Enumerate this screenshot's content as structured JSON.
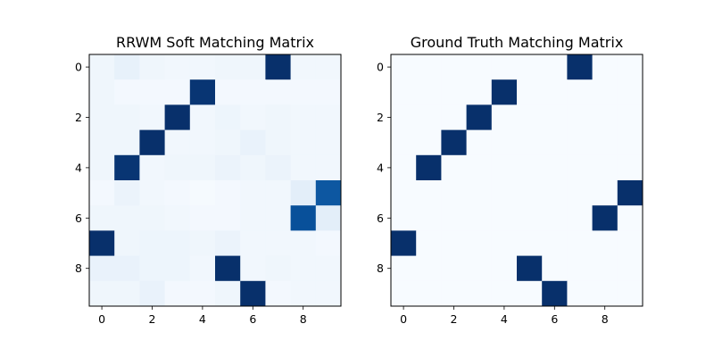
{
  "chart_data": [
    {
      "type": "heatmap",
      "title": "RRWM Soft Matching Matrix",
      "colormap": "Blues",
      "vmin": 0,
      "vmax": 1,
      "xticks": [
        0,
        2,
        4,
        6,
        8
      ],
      "yticks": [
        0,
        2,
        4,
        6,
        8
      ],
      "grid": false,
      "values": [
        [
          0.04,
          0.08,
          0.04,
          0.03,
          0.03,
          0.04,
          0.04,
          1.0,
          0.03,
          0.03
        ],
        [
          0.04,
          0.02,
          0.02,
          0.02,
          0.98,
          0.02,
          0.02,
          0.02,
          0.02,
          0.02
        ],
        [
          0.04,
          0.04,
          0.03,
          1.0,
          0.03,
          0.05,
          0.03,
          0.04,
          0.03,
          0.03
        ],
        [
          0.04,
          0.04,
          1.0,
          0.03,
          0.03,
          0.04,
          0.07,
          0.04,
          0.03,
          0.03
        ],
        [
          0.04,
          0.98,
          0.03,
          0.04,
          0.04,
          0.06,
          0.04,
          0.06,
          0.03,
          0.03
        ],
        [
          0.02,
          0.06,
          0.03,
          0.02,
          0.01,
          0.02,
          0.03,
          0.03,
          0.1,
          0.85
        ],
        [
          0.04,
          0.04,
          0.04,
          0.03,
          0.02,
          0.02,
          0.03,
          0.03,
          0.88,
          0.1
        ],
        [
          1.0,
          0.04,
          0.05,
          0.05,
          0.04,
          0.06,
          0.03,
          0.03,
          0.03,
          0.02
        ],
        [
          0.07,
          0.07,
          0.05,
          0.05,
          0.03,
          1.0,
          0.03,
          0.04,
          0.03,
          0.03
        ],
        [
          0.04,
          0.04,
          0.07,
          0.02,
          0.02,
          0.04,
          1.0,
          0.02,
          0.03,
          0.03
        ]
      ]
    },
    {
      "type": "heatmap",
      "title": "Ground Truth Matching Matrix",
      "colormap": "Blues",
      "vmin": 0,
      "vmax": 1,
      "xticks": [
        0,
        2,
        4,
        6,
        8
      ],
      "yticks": [
        0,
        2,
        4,
        6,
        8
      ],
      "grid": false,
      "values": [
        [
          0,
          0,
          0,
          0,
          0,
          0,
          0,
          1,
          0,
          0
        ],
        [
          0,
          0,
          0,
          0,
          1,
          0,
          0,
          0,
          0,
          0
        ],
        [
          0,
          0,
          0,
          1,
          0,
          0,
          0,
          0,
          0,
          0
        ],
        [
          0,
          0,
          1,
          0,
          0,
          0,
          0,
          0,
          0,
          0
        ],
        [
          0,
          1,
          0,
          0,
          0,
          0,
          0,
          0,
          0,
          0
        ],
        [
          0,
          0,
          0,
          0,
          0,
          0,
          0,
          0,
          0,
          1
        ],
        [
          0,
          0,
          0,
          0,
          0,
          0,
          0,
          0,
          1,
          0
        ],
        [
          1,
          0,
          0,
          0,
          0,
          0,
          0,
          0,
          0,
          0
        ],
        [
          0,
          0,
          0,
          0,
          0,
          1,
          0,
          0,
          0,
          0
        ],
        [
          0,
          0,
          0,
          0,
          0,
          0,
          1,
          0,
          0,
          0
        ]
      ]
    }
  ]
}
